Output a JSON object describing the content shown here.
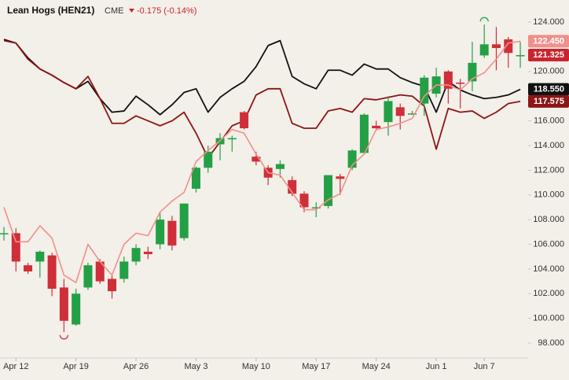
{
  "chart_data": {
    "type": "candlestick",
    "title": "Lean Hogs (HEN21)",
    "exchange": "CME",
    "change": "-0.175 (-0.14%)",
    "categories": [
      null,
      "Apr 12",
      null,
      null,
      null,
      null,
      "Apr 19",
      null,
      null,
      null,
      null,
      "Apr 26",
      null,
      null,
      null,
      null,
      "May 3",
      null,
      null,
      null,
      null,
      "May 10",
      null,
      null,
      null,
      null,
      "May 17",
      null,
      null,
      null,
      null,
      "May 24",
      null,
      null,
      null,
      null,
      "Jun 1",
      null,
      null,
      null,
      "Jun 7",
      null,
      null,
      null
    ],
    "candles": {
      "open": [
        106.9,
        106.9,
        104.3,
        104.6,
        105.1,
        102.5,
        99.5,
        102.5,
        104.6,
        103.2,
        103.2,
        104.6,
        105.4,
        106.0,
        107.9,
        106.5,
        110.5,
        112.2,
        114.1,
        114.5,
        116.7,
        113.1,
        112.2,
        112.1,
        111.2,
        110.1,
        109.0,
        109.1,
        111.5,
        112.2,
        113.4,
        115.6,
        115.9,
        117.1,
        116.6,
        117.4,
        118.2,
        120.0,
        119.1,
        119.2,
        121.3,
        122.2,
        122.6,
        121.3
      ],
      "high": [
        107.4,
        107.3,
        104.5,
        105.5,
        105.3,
        103.2,
        102.4,
        104.5,
        104.8,
        103.6,
        105.0,
        106.0,
        105.8,
        108.6,
        108.3,
        109.3,
        112.3,
        114.0,
        115.0,
        114.8,
        116.8,
        113.5,
        112.4,
        112.8,
        111.5,
        110.3,
        109.4,
        111.6,
        111.7,
        113.7,
        116.6,
        116.0,
        118.0,
        117.4,
        116.8,
        119.7,
        120.3,
        120.1,
        119.4,
        122.4,
        123.8,
        123.6,
        122.8,
        122.4
      ],
      "low": [
        106.3,
        103.8,
        103.6,
        103.3,
        101.8,
        98.9,
        99.4,
        102.3,
        102.8,
        101.6,
        102.9,
        104.3,
        104.8,
        105.6,
        105.5,
        106.3,
        110.2,
        111.8,
        112.8,
        113.5,
        115.3,
        112.4,
        110.8,
        111.4,
        109.9,
        108.6,
        108.2,
        108.9,
        110.0,
        112.0,
        113.3,
        115.2,
        114.8,
        115.3,
        116.5,
        116.4,
        117.9,
        117.4,
        117.0,
        118.4,
        121.1,
        120.1,
        120.3,
        120.3
      ],
      "close": [
        106.9,
        104.6,
        103.8,
        105.4,
        102.4,
        99.8,
        102.0,
        104.3,
        103.0,
        102.2,
        104.6,
        105.7,
        105.2,
        108.0,
        105.9,
        109.3,
        112.2,
        113.5,
        114.6,
        114.6,
        115.4,
        112.7,
        111.4,
        112.5,
        110.1,
        109.0,
        109.0,
        111.6,
        111.3,
        113.6,
        116.5,
        115.4,
        117.6,
        116.4,
        116.6,
        119.5,
        119.6,
        118.6,
        119.0,
        120.7,
        122.2,
        121.9,
        121.5,
        121.325
      ],
      "up_color": "#23a045",
      "down_color": "#cf2f38",
      "last_label": "121.325",
      "label_color": "#c9252f"
    },
    "series": [
      {
        "color": "#111111",
        "last_label": "118.550",
        "values": [
          122.6,
          122.3,
          121.1,
          120.2,
          119.7,
          119.1,
          118.6,
          119.2,
          117.8,
          116.7,
          116.8,
          118.0,
          117.3,
          116.5,
          117.3,
          118.3,
          118.6,
          116.7,
          117.9,
          118.6,
          119.2,
          120.4,
          122.1,
          122.5,
          119.6,
          119.0,
          118.6,
          120.1,
          120.1,
          119.7,
          120.6,
          120.2,
          120.2,
          119.5,
          119.1,
          118.8,
          116.7,
          119.2,
          118.5,
          118.1,
          117.8,
          117.9,
          118.1,
          118.55
        ]
      },
      {
        "color": "#8c1616",
        "last_label": "117.575",
        "values": [
          122.5,
          122.3,
          121.0,
          120.2,
          119.7,
          119.1,
          118.6,
          119.6,
          117.8,
          115.8,
          115.8,
          116.4,
          116.0,
          115.6,
          116.0,
          116.7,
          115.0,
          113.0,
          114.3,
          115.6,
          116.0,
          118.1,
          118.6,
          118.6,
          115.8,
          115.4,
          115.4,
          116.8,
          117.0,
          116.7,
          117.8,
          117.7,
          117.9,
          118.1,
          118.0,
          117.2,
          113.7,
          117.0,
          116.7,
          116.8,
          116.2,
          116.7,
          117.4,
          117.575
        ]
      },
      {
        "color": "#f0908a",
        "last_label": "122.450",
        "values": [
          109.0,
          106.2,
          106.2,
          107.5,
          106.5,
          103.5,
          102.9,
          106.0,
          104.6,
          103.5,
          106.0,
          106.9,
          106.7,
          108.6,
          109.5,
          110.2,
          112.7,
          113.6,
          114.4,
          115.3,
          115.0,
          113.3,
          111.8,
          111.6,
          110.2,
          108.8,
          108.8,
          109.6,
          110.1,
          112.4,
          113.3,
          115.3,
          115.5,
          115.8,
          116.2,
          118.0,
          118.9,
          118.9,
          118.5,
          119.4,
          119.9,
          121.0,
          122.3,
          122.45
        ]
      }
    ],
    "ylim": [
      96.79,
      125.79
    ],
    "yticks": [
      {
        "value": 98,
        "label": "98.000"
      },
      {
        "value": 100,
        "label": "100.000"
      },
      {
        "value": 102,
        "label": "102.000"
      },
      {
        "value": 104,
        "label": "104.000"
      },
      {
        "value": 106,
        "label": "106.000"
      },
      {
        "value": 108,
        "label": "108.000"
      },
      {
        "value": 110,
        "label": "110.000"
      },
      {
        "value": 112,
        "label": "112.000"
      },
      {
        "value": 114,
        "label": "114.000"
      },
      {
        "value": 116,
        "label": "116.000"
      },
      {
        "value": 120,
        "label": "120.000"
      },
      {
        "value": 124,
        "label": "124.000"
      }
    ]
  }
}
